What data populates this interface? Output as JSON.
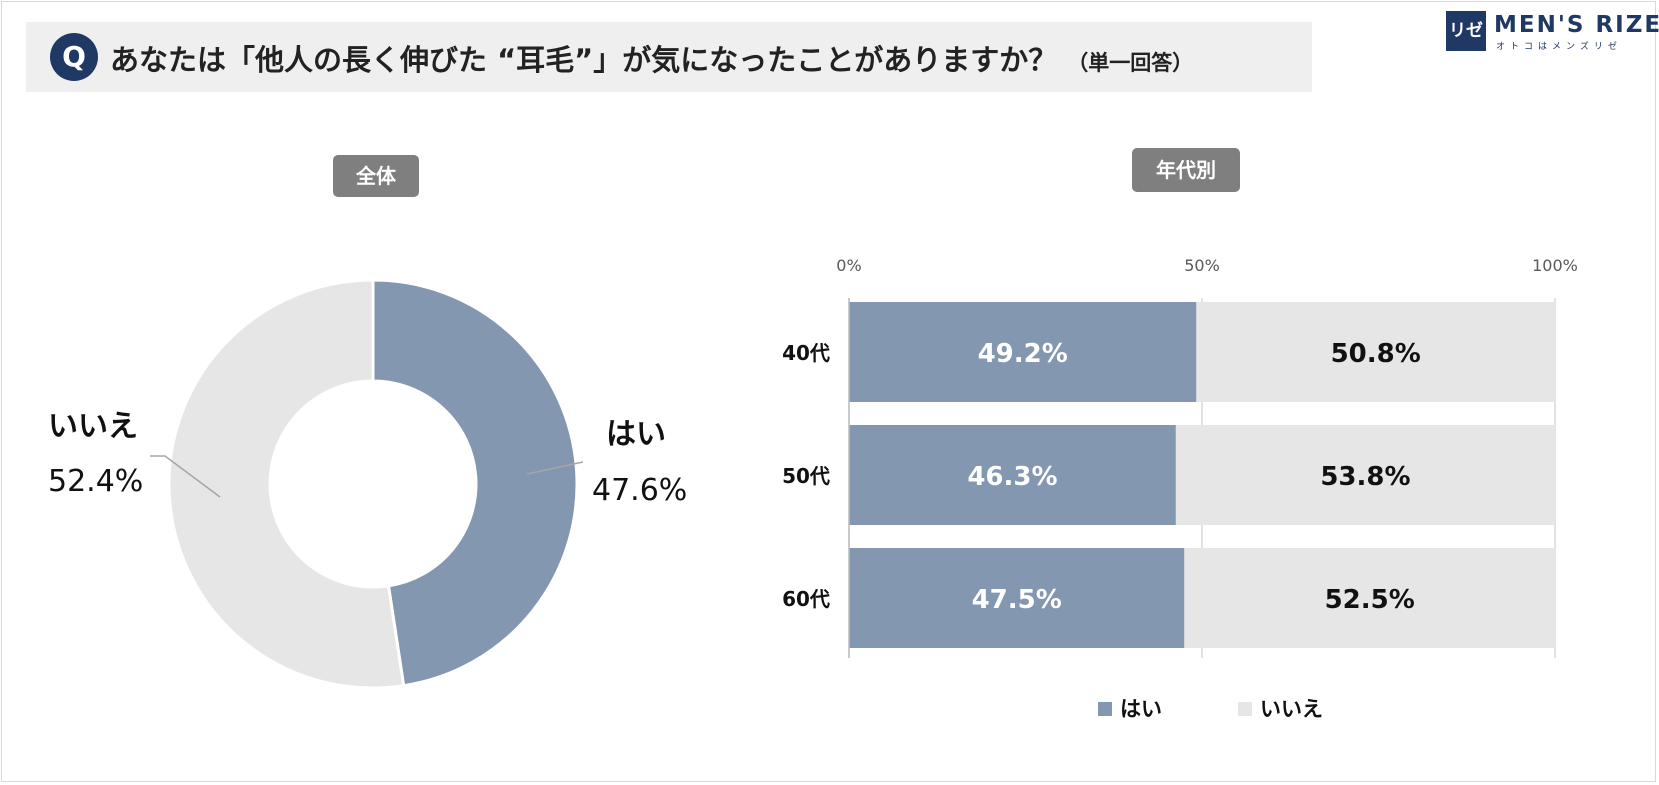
{
  "question": {
    "badge": "Q",
    "text": "あなたは「他人の長く伸びた “耳毛”」が気になったことがありますか？",
    "note": "（単一回答）"
  },
  "logo": {
    "mark": "リゼ",
    "name": "MEN'S RIZE",
    "tagline": "オトコはメンズリゼ"
  },
  "overall_tag": "全体",
  "by_age_tag": "年代別",
  "colors": {
    "yes": "#8497b0",
    "no": "#e7e6e6",
    "navy": "#1f3864"
  },
  "chart_data": [
    {
      "type": "pie",
      "title": "全体",
      "slices": [
        {
          "label": "はい",
          "value": 47.6,
          "display": "47.6%"
        },
        {
          "label": "いいえ",
          "value": 52.4,
          "display": "52.4%"
        }
      ]
    },
    {
      "type": "bar",
      "orientation": "horizontal",
      "stacked": "100%",
      "title": "年代別",
      "categories": [
        "40代",
        "50代",
        "60代"
      ],
      "series": [
        {
          "name": "はい",
          "values": [
            49.2,
            46.3,
            47.5
          ],
          "labels": [
            "49.2%",
            "46.3%",
            "47.5%"
          ]
        },
        {
          "name": "いいえ",
          "values": [
            50.8,
            53.8,
            52.5
          ],
          "labels": [
            "50.8%",
            "53.8%",
            "52.5%"
          ]
        }
      ],
      "xlim": [
        0,
        100
      ],
      "xticks": [
        "0%",
        "50%",
        "100%"
      ],
      "legend": "bottom",
      "grid": true
    }
  ]
}
